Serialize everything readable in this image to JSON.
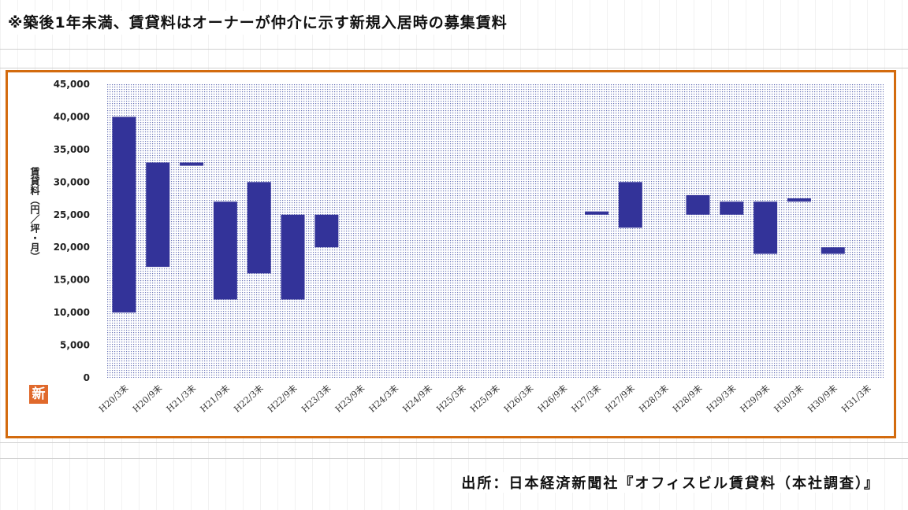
{
  "note": "※築後1年未満、賃貸料はオーナーが仲介に示す新規入居時の募集賃料",
  "source": "出所：日本経済新聞社『オフィスビル賃貸料（本社調査）』",
  "badge": "新",
  "colors": {
    "bar": "#333399",
    "frame": "#d36b0e",
    "plot_dots": "#6a74b8"
  },
  "chart_data": {
    "type": "bar",
    "subtype": "floating-range",
    "ylabel": "賃貸料（円／坪・月）",
    "ylim": [
      0,
      45000
    ],
    "yticks": [
      0,
      5000,
      10000,
      15000,
      20000,
      25000,
      30000,
      35000,
      40000,
      45000
    ],
    "ytick_labels": [
      "0",
      "5,000",
      "10,000",
      "15,000",
      "20,000",
      "25,000",
      "30,000",
      "35,000",
      "40,000",
      "45,000"
    ],
    "grid": false,
    "legend": "none",
    "categories": [
      "H20/3末",
      "H20/9末",
      "H21/3末",
      "H21/9末",
      "H22/3末",
      "H22/9末",
      "H23/3末",
      "H23/9末",
      "H24/3末",
      "H24/9末",
      "H25/3末",
      "H25/9末",
      "H26/3末",
      "H26/9末",
      "H27/3末",
      "H27/9末",
      "H28/3末",
      "H28/9末",
      "H29/3末",
      "H29/9末",
      "H30/3末",
      "H30/9末",
      "H31/3末"
    ],
    "ranges": [
      [
        10000,
        40000
      ],
      [
        17000,
        33000
      ],
      [
        32500,
        33000
      ],
      [
        12000,
        27000
      ],
      [
        16000,
        30000
      ],
      [
        12000,
        25000
      ],
      [
        20000,
        25000
      ],
      null,
      null,
      null,
      null,
      null,
      null,
      null,
      [
        25000,
        25500
      ],
      [
        23000,
        30000
      ],
      null,
      [
        25000,
        28000
      ],
      [
        25000,
        27000
      ],
      [
        19000,
        27000
      ],
      [
        27000,
        27500
      ],
      [
        19000,
        20000
      ],
      null
    ]
  }
}
